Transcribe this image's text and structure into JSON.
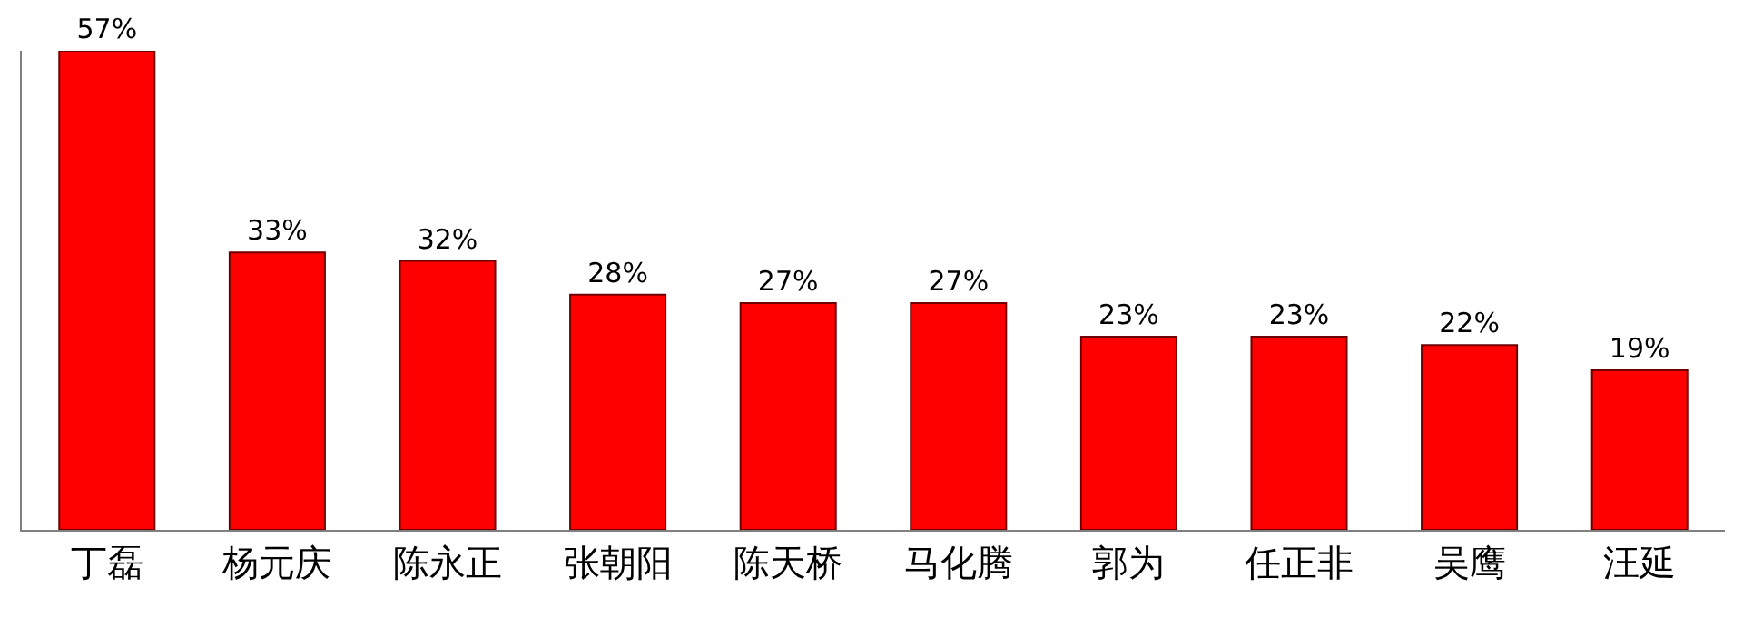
{
  "chart_data": {
    "type": "bar",
    "categories": [
      "丁磊",
      "杨元庆",
      "陈永正",
      "张朝阳",
      "陈天桥",
      "马化腾",
      "郭为",
      "任正非",
      "吴鹰",
      "汪延"
    ],
    "values": [
      57,
      33,
      32,
      28,
      27,
      27,
      23,
      23,
      22,
      19
    ],
    "value_labels": [
      "57%",
      "33%",
      "32%",
      "28%",
      "27%",
      "27%",
      "23%",
      "23%",
      "22%",
      "19%"
    ],
    "color": "#ff0000",
    "legend": false
  }
}
